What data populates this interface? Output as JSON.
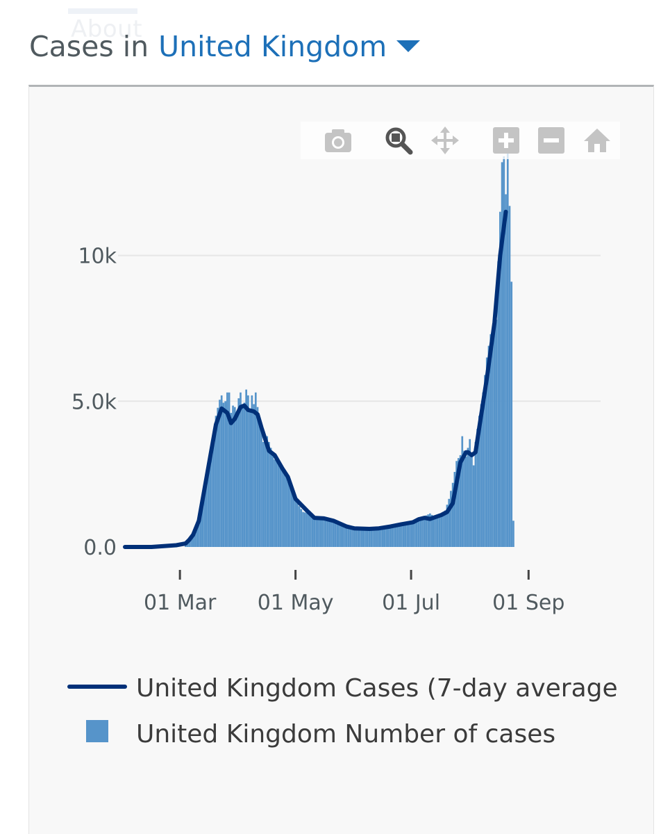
{
  "header": {
    "ghost_tab": "About",
    "prefix": "Cases in",
    "region": "United Kingdom",
    "dropdown_icon": "caret-down-icon"
  },
  "modebar": {
    "buttons": [
      {
        "name": "camera-icon",
        "label": "Download plot as a png"
      },
      {
        "name": "zoom-icon",
        "label": "Zoom"
      },
      {
        "name": "pan-icon",
        "label": "Pan"
      },
      {
        "name": "zoom-in-icon",
        "label": "Zoom in"
      },
      {
        "name": "zoom-out-icon",
        "label": "Zoom out"
      },
      {
        "name": "home-icon",
        "label": "Reset axes"
      }
    ]
  },
  "colors": {
    "region_link": "#1d70b8",
    "bars": "#5694ca",
    "line": "#003078",
    "text": "#505a5f",
    "grid": "#e6e6e6"
  },
  "chart_data": {
    "type": "bar",
    "title": "Cases in United Kingdom",
    "xlabel": "",
    "ylabel": "",
    "ylim": [
      0,
      13400
    ],
    "x_axis": {
      "unit": "day index since 01 Jan (leap year)",
      "range": [
        31,
        282
      ],
      "ticks": [
        {
          "label": "01 Mar",
          "day": 60
        },
        {
          "label": "01 May",
          "day": 121
        },
        {
          "label": "01 Jul",
          "day": 182
        },
        {
          "label": "01 Sep",
          "day": 244
        }
      ]
    },
    "y_axis": {
      "ticks": [
        {
          "label": "0.0",
          "value": 0
        },
        {
          "label": "5.0k",
          "value": 5000
        },
        {
          "label": "10k",
          "value": 10000
        }
      ],
      "grid": true
    },
    "legend": {
      "placement": "bottom",
      "entries": [
        {
          "label": "United Kingdom Cases (7-day average",
          "kind": "line"
        },
        {
          "label": "United Kingdom Number of cases",
          "kind": "bar"
        }
      ]
    },
    "series": [
      {
        "name": "United Kingdom Cases (7-day average",
        "kind": "line",
        "points": [
          [
            31,
            0
          ],
          [
            45,
            0
          ],
          [
            58,
            60
          ],
          [
            63,
            120
          ],
          [
            65,
            250
          ],
          [
            67,
            420
          ],
          [
            70,
            900
          ],
          [
            73,
            2000
          ],
          [
            76,
            3100
          ],
          [
            79,
            4200
          ],
          [
            82,
            4750
          ],
          [
            85,
            4600
          ],
          [
            87,
            4250
          ],
          [
            89,
            4400
          ],
          [
            92,
            4800
          ],
          [
            94,
            4850
          ],
          [
            96,
            4700
          ],
          [
            99,
            4650
          ],
          [
            101,
            4550
          ],
          [
            103,
            4100
          ],
          [
            107,
            3300
          ],
          [
            110,
            3150
          ],
          [
            114,
            2700
          ],
          [
            117,
            2400
          ],
          [
            121,
            1650
          ],
          [
            127,
            1250
          ],
          [
            131,
            1000
          ],
          [
            136,
            980
          ],
          [
            141,
            900
          ],
          [
            148,
            700
          ],
          [
            152,
            640
          ],
          [
            160,
            620
          ],
          [
            165,
            640
          ],
          [
            171,
            700
          ],
          [
            177,
            780
          ],
          [
            183,
            850
          ],
          [
            186,
            950
          ],
          [
            189,
            1000
          ],
          [
            192,
            960
          ],
          [
            198,
            1100
          ],
          [
            201,
            1200
          ],
          [
            204,
            1500
          ],
          [
            206,
            2200
          ],
          [
            208,
            2900
          ],
          [
            211,
            3250
          ],
          [
            212,
            3250
          ],
          [
            214,
            3150
          ],
          [
            216,
            3250
          ],
          [
            218,
            4100
          ],
          [
            222,
            5800
          ],
          [
            226,
            7700
          ],
          [
            229,
            10000
          ],
          [
            232,
            11500
          ]
        ]
      },
      {
        "name": "United Kingdom Number of cases",
        "kind": "bar",
        "keypoints": [
          [
            63,
            60
          ],
          [
            65,
            250
          ],
          [
            67,
            450
          ],
          [
            69,
            700
          ],
          [
            72,
            1800
          ],
          [
            74,
            2500
          ],
          [
            77,
            3500
          ],
          [
            79,
            4500
          ],
          [
            81,
            5050
          ],
          [
            82,
            5200
          ],
          [
            83,
            4950
          ],
          [
            84,
            5000
          ],
          [
            85,
            5300
          ],
          [
            86,
            5300
          ],
          [
            87,
            4600
          ],
          [
            88,
            4850
          ],
          [
            89,
            4800
          ],
          [
            90,
            4600
          ],
          [
            91,
            5100
          ],
          [
            92,
            5300
          ],
          [
            93,
            4900
          ],
          [
            94,
            4950
          ],
          [
            95,
            5400
          ],
          [
            96,
            5200
          ],
          [
            97,
            4700
          ],
          [
            98,
            5200
          ],
          [
            99,
            4900
          ],
          [
            100,
            5300
          ],
          [
            101,
            4800
          ],
          [
            102,
            4400
          ],
          [
            104,
            3600
          ],
          [
            106,
            3800
          ],
          [
            108,
            3400
          ],
          [
            110,
            3000
          ],
          [
            112,
            3000
          ],
          [
            114,
            2700
          ],
          [
            116,
            2400
          ],
          [
            118,
            2200
          ],
          [
            120,
            1800
          ],
          [
            122,
            1500
          ],
          [
            125,
            1200
          ],
          [
            128,
            1150
          ],
          [
            131,
            1050
          ],
          [
            134,
            1000
          ],
          [
            137,
            980
          ],
          [
            140,
            920
          ],
          [
            143,
            870
          ],
          [
            146,
            780
          ],
          [
            150,
            680
          ],
          [
            155,
            620
          ],
          [
            160,
            610
          ],
          [
            165,
            650
          ],
          [
            170,
            700
          ],
          [
            175,
            780
          ],
          [
            180,
            850
          ],
          [
            185,
            950
          ],
          [
            189,
            1050
          ],
          [
            192,
            1150
          ],
          [
            195,
            1000
          ],
          [
            198,
            1150
          ],
          [
            200,
            1250
          ],
          [
            202,
            1650
          ],
          [
            204,
            2200
          ],
          [
            206,
            2950
          ],
          [
            208,
            3150
          ],
          [
            209,
            3800
          ],
          [
            210,
            3300
          ],
          [
            211,
            3100
          ],
          [
            213,
            3700
          ],
          [
            214,
            3200
          ],
          [
            215,
            2800
          ],
          [
            216,
            3600
          ],
          [
            218,
            4500
          ],
          [
            220,
            5300
          ],
          [
            222,
            6500
          ],
          [
            224,
            7300
          ],
          [
            225,
            7200
          ],
          [
            226,
            8100
          ],
          [
            227,
            7800
          ],
          [
            228,
            9800
          ],
          [
            229,
            11500
          ],
          [
            230,
            13200
          ],
          [
            231,
            13400
          ],
          [
            232,
            12100
          ],
          [
            233,
            13900
          ],
          [
            234,
            11700
          ],
          [
            235,
            9100
          ],
          [
            236,
            900
          ]
        ]
      }
    ]
  }
}
